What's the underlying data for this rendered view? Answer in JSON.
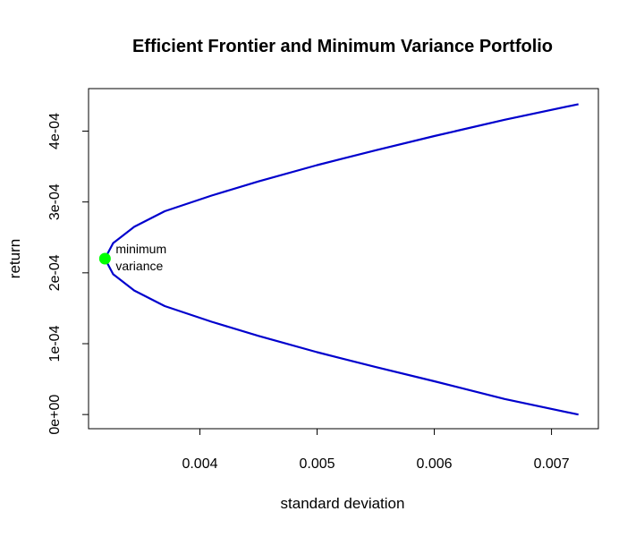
{
  "chart_data": {
    "type": "line",
    "title": "Efficient Frontier and Minimum Variance Portfolio",
    "xlabel": "standard deviation",
    "ylabel": "return",
    "xlim": [
      0.00305,
      0.0074
    ],
    "ylim": [
      -2e-05,
      0.00046
    ],
    "x_ticks": [
      {
        "value": 0.004,
        "label": "0.004"
      },
      {
        "value": 0.005,
        "label": "0.005"
      },
      {
        "value": 0.006,
        "label": "0.006"
      },
      {
        "value": 0.007,
        "label": "0.007"
      }
    ],
    "y_ticks": [
      {
        "value": 0.0,
        "label": "0e+00"
      },
      {
        "value": 0.0001,
        "label": "1e-04"
      },
      {
        "value": 0.0002,
        "label": "2e-04"
      },
      {
        "value": 0.0003,
        "label": "3e-04"
      },
      {
        "value": 0.0004,
        "label": "4e-04"
      }
    ],
    "grid": false,
    "series": [
      {
        "color": "#0000CD",
        "points": [
          {
            "x": 0.00723,
            "y": 0.0
          },
          {
            "x": 0.0066,
            "y": 2.2e-05
          },
          {
            "x": 0.006,
            "y": 4.7e-05
          },
          {
            "x": 0.0055,
            "y": 6.7e-05
          },
          {
            "x": 0.005,
            "y": 8.8e-05
          },
          {
            "x": 0.0045,
            "y": 0.000111
          },
          {
            "x": 0.0041,
            "y": 0.000131
          },
          {
            "x": 0.0037,
            "y": 0.000153
          },
          {
            "x": 0.00344,
            "y": 0.000175
          },
          {
            "x": 0.00326,
            "y": 0.000198
          },
          {
            "x": 0.00319,
            "y": 0.00022
          },
          {
            "x": 0.00326,
            "y": 0.000242
          },
          {
            "x": 0.00344,
            "y": 0.000265
          },
          {
            "x": 0.0037,
            "y": 0.000287
          },
          {
            "x": 0.0041,
            "y": 0.000309
          },
          {
            "x": 0.0045,
            "y": 0.000329
          },
          {
            "x": 0.005,
            "y": 0.000352
          },
          {
            "x": 0.0055,
            "y": 0.000373
          },
          {
            "x": 0.006,
            "y": 0.000393
          },
          {
            "x": 0.0066,
            "y": 0.000416
          },
          {
            "x": 0.00723,
            "y": 0.000438
          }
        ]
      }
    ],
    "highlight_point": {
      "x": 0.00319,
      "y": 0.00022,
      "color": "#00FF00",
      "label_line1": "minimum",
      "label_line2": "variance"
    }
  }
}
